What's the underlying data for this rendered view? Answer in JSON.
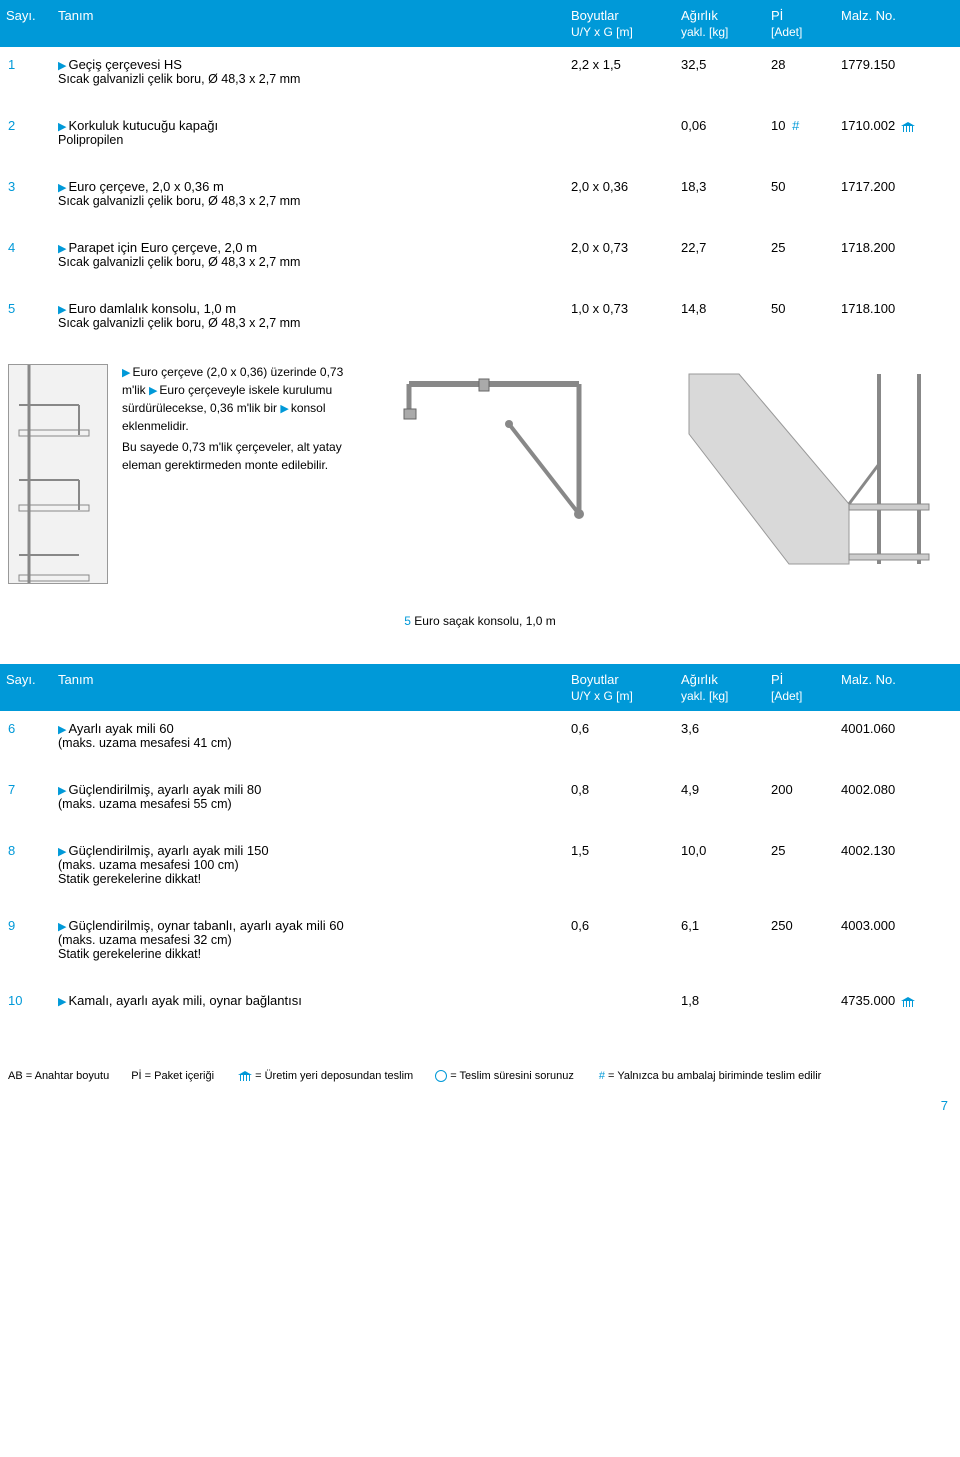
{
  "table1": {
    "head": {
      "sayi": "Sayı.",
      "tanim": "Tanım",
      "boyutlar": "Boyutlar",
      "boyutlar_sub": "U/Y x G [m]",
      "agirlik": "Ağırlık",
      "agirlik_sub": "yakl. [kg]",
      "pi": "Pİ",
      "pi_sub": "[Adet]",
      "malz": "Malz. No."
    },
    "rows": [
      {
        "n": "1",
        "t1": "Geçiş çerçevesi HS",
        "t2": "Sıcak galvanizli çelik boru, Ø 48,3 x 2,7 mm",
        "b": "2,2 x 1,5",
        "a": "32,5",
        "p": "28",
        "m": "1779.150",
        "hash": false,
        "wh": false
      },
      {
        "n": "2",
        "t1": "Korkuluk kutucuğu kapağı",
        "t2": "Polipropilen",
        "b": "",
        "a": "0,06",
        "p": "10",
        "m": "1710.002",
        "hash": true,
        "wh": true
      },
      {
        "n": "3",
        "t1": "Euro çerçeve, 2,0 x 0,36 m",
        "t2": "Sıcak galvanizli çelik boru, Ø 48,3 x 2,7 mm",
        "b": "2,0 x 0,36",
        "a": "18,3",
        "p": "50",
        "m": "1717.200",
        "hash": false,
        "wh": false
      },
      {
        "n": "4",
        "t1": "Parapet için Euro çerçeve, 2,0 m",
        "t2": "Sıcak galvanizli çelik boru, Ø 48,3 x 2,7 mm",
        "b": "2,0 x 0,73",
        "a": "22,7",
        "p": "25",
        "m": "1718.200",
        "hash": false,
        "wh": false
      },
      {
        "n": "5",
        "t1": "Euro damlalık konsolu, 1,0 m",
        "t2": "Sıcak galvanizli çelik boru, Ø 48,3 x 2,7 mm",
        "b": "1,0 x 0,73",
        "a": "14,8",
        "p": "50",
        "m": "1718.100",
        "hash": false,
        "wh": false
      }
    ]
  },
  "info": {
    "p1a": "Euro çerçeve (2,0 x 0,36) üzerinde 0,73 m'lik ",
    "p1b": "Euro çerçeveyle iskele kurulumu sürdürülecekse, 0,36 m'lik bir ",
    "p1c": "konsol eklenmelidir.",
    "p2": "Bu sayede 0,73 m'lik çerçeveler, alt yatay eleman gerektirmeden monte edilebilir."
  },
  "caption": {
    "num": "5",
    "txt": " Euro saçak konsolu, 1,0 m"
  },
  "table2": {
    "head": {
      "sayi": "Sayı.",
      "tanim": "Tanım",
      "boyutlar": "Boyutlar",
      "boyutlar_sub": "U/Y x G [m]",
      "agirlik": "Ağırlık",
      "agirlik_sub": "yakl. [kg]",
      "pi": "Pİ",
      "pi_sub": "[Adet]",
      "malz": "Malz. No."
    },
    "rows": [
      {
        "n": "6",
        "t1": "Ayarlı ayak mili 60",
        "t2": "(maks. uzama mesafesi 41 cm)",
        "t3": "",
        "b": "0,6",
        "a": "3,6",
        "p": "",
        "m": "4001.060",
        "hash": false,
        "wh": false
      },
      {
        "n": "7",
        "t1": "Güçlendirilmiş, ayarlı ayak mili 80",
        "t2": "(maks. uzama mesafesi 55 cm)",
        "t3": "",
        "b": "0,8",
        "a": "4,9",
        "p": "200",
        "m": "4002.080",
        "hash": false,
        "wh": false
      },
      {
        "n": "8",
        "t1": "Güçlendirilmiş, ayarlı ayak mili 150",
        "t2": "(maks. uzama mesafesi 100 cm)",
        "t3": "Statik gerekelerine dikkat!",
        "b": "1,5",
        "a": "10,0",
        "p": "25",
        "m": "4002.130",
        "hash": false,
        "wh": false
      },
      {
        "n": "9",
        "t1": "Güçlendirilmiş, oynar tabanlı, ayarlı ayak mili 60",
        "t2": "(maks. uzama mesafesi 32 cm)",
        "t3": "Statik gerekelerine dikkat!",
        "b": "0,6",
        "a": "6,1",
        "p": "250",
        "m": "4003.000",
        "hash": false,
        "wh": false
      },
      {
        "n": "10",
        "t1": "Kamalı, ayarlı ayak mili, oynar bağlantısı",
        "t2": "",
        "t3": "",
        "b": "",
        "a": "1,8",
        "p": "",
        "m": "4735.000",
        "hash": false,
        "wh": true
      }
    ]
  },
  "legend": {
    "ab": "AB = Anahtar boyutu",
    "pi": "Pİ = Paket içeriği",
    "wh": "= Üretim yeri deposundan teslim",
    "clock": "= Teslim süresini sorunuz",
    "hash": "= Yalnızca bu ambalaj biriminde teslim edilir"
  },
  "style": {
    "brand_color": "#0099d8",
    "text_color": "#000000",
    "bg_color": "#ffffff",
    "font_size_body": 13,
    "font_size_small": 12,
    "font_size_legend": 11,
    "font_family": "Arial, Helvetica, sans-serif"
  },
  "page_number": "7"
}
